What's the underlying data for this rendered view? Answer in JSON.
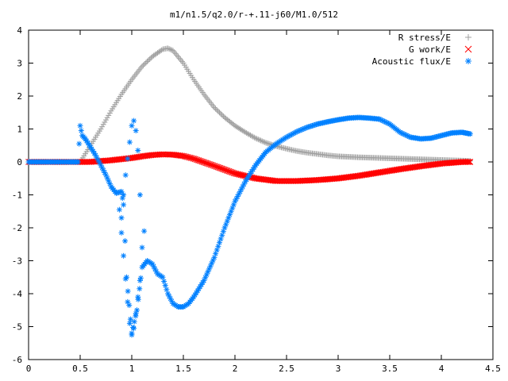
{
  "chart_data": {
    "type": "scatter",
    "title": "m1/n1.5/q2.0/r-+.11-j60/M1.0/512",
    "xlabel": "",
    "ylabel": "",
    "xlim": [
      0,
      4.5
    ],
    "ylim": [
      -6,
      4
    ],
    "xticks": [
      "0",
      "0.5",
      "1",
      "1.5",
      "2",
      "2.5",
      "3",
      "3.5",
      "4",
      "4.5"
    ],
    "yticks": [
      "4",
      "3",
      "2",
      "1",
      "0",
      "-1",
      "-2",
      "-3",
      "-4",
      "-5",
      "-6"
    ],
    "grid": false,
    "legend_position": "top-right",
    "series": [
      {
        "name": "R stress/E",
        "marker": "plus",
        "color": "#a0a0a0",
        "x": [
          0.0,
          0.1,
          0.2,
          0.3,
          0.4,
          0.5,
          0.6,
          0.7,
          0.8,
          0.9,
          1.0,
          1.1,
          1.2,
          1.3,
          1.35,
          1.4,
          1.5,
          1.6,
          1.7,
          1.8,
          1.9,
          2.0,
          2.1,
          2.2,
          2.3,
          2.4,
          2.5,
          2.6,
          2.7,
          2.8,
          2.9,
          3.0,
          3.2,
          3.4,
          3.6,
          3.8,
          4.0,
          4.2,
          4.28
        ],
        "y": [
          0.0,
          0.0,
          0.0,
          0.0,
          0.0,
          0.0,
          0.5,
          1.0,
          1.55,
          2.05,
          2.5,
          2.9,
          3.2,
          3.42,
          3.45,
          3.38,
          3.0,
          2.5,
          2.05,
          1.65,
          1.35,
          1.1,
          0.9,
          0.72,
          0.58,
          0.48,
          0.4,
          0.33,
          0.28,
          0.24,
          0.2,
          0.17,
          0.14,
          0.12,
          0.1,
          0.08,
          0.06,
          0.04,
          0.03
        ]
      },
      {
        "name": "G work/E",
        "marker": "cross",
        "color": "#ff0000",
        "x": [
          0.0,
          0.2,
          0.4,
          0.6,
          0.8,
          1.0,
          1.1,
          1.2,
          1.3,
          1.4,
          1.5,
          1.6,
          1.8,
          2.0,
          2.2,
          2.4,
          2.6,
          2.8,
          3.0,
          3.2,
          3.4,
          3.6,
          3.8,
          4.0,
          4.2,
          4.28
        ],
        "y": [
          0.0,
          0.0,
          0.0,
          0.0,
          0.05,
          0.12,
          0.17,
          0.21,
          0.23,
          0.22,
          0.18,
          0.1,
          -0.12,
          -0.35,
          -0.5,
          -0.58,
          -0.58,
          -0.55,
          -0.5,
          -0.42,
          -0.32,
          -0.22,
          -0.13,
          -0.05,
          0.0,
          0.0
        ]
      },
      {
        "name": "Acoustic flux/E",
        "marker": "star",
        "color": "#0080ff",
        "x": [
          0.0,
          0.1,
          0.2,
          0.3,
          0.4,
          0.48,
          0.5,
          0.52,
          0.55,
          0.6,
          0.65,
          0.7,
          0.75,
          0.8,
          0.85,
          0.9,
          0.92,
          0.95,
          1.0,
          1.05,
          1.1,
          1.15,
          1.2,
          1.25,
          1.3,
          1.35,
          1.4,
          1.45,
          1.5,
          1.55,
          1.6,
          1.7,
          1.8,
          1.9,
          2.0,
          2.1,
          2.2,
          2.3,
          2.4,
          2.5,
          2.6,
          2.7,
          2.8,
          2.9,
          3.0,
          3.1,
          3.2,
          3.3,
          3.4,
          3.5,
          3.6,
          3.7,
          3.8,
          3.9,
          4.0,
          4.1,
          4.2,
          4.28
        ],
        "y": [
          0.0,
          0.0,
          0.0,
          0.0,
          0.0,
          0.0,
          1.1,
          0.8,
          0.7,
          0.45,
          0.2,
          -0.1,
          -0.4,
          -0.75,
          -0.95,
          -0.9,
          -1.3,
          -3.5,
          -5.2,
          -4.5,
          -3.2,
          -3.0,
          -3.1,
          -3.4,
          -3.5,
          -4.0,
          -4.3,
          -4.4,
          -4.4,
          -4.3,
          -4.1,
          -3.6,
          -2.9,
          -2.0,
          -1.2,
          -0.6,
          -0.1,
          0.3,
          0.55,
          0.75,
          0.92,
          1.05,
          1.15,
          1.22,
          1.28,
          1.33,
          1.35,
          1.33,
          1.3,
          1.15,
          0.9,
          0.75,
          0.7,
          0.72,
          0.8,
          0.88,
          0.9,
          0.85
        ]
      }
    ],
    "scatter_extra": [
      {
        "series": "Acoustic flux/E",
        "x": [
          0.88,
          0.9,
          0.92,
          0.94,
          0.96,
          0.98,
          1.0,
          1.02,
          1.04,
          1.06,
          1.08,
          1.1,
          1.12
        ],
        "y": [
          -1.45,
          -2.15,
          -2.85,
          -3.55,
          -4.25,
          -4.9,
          -5.25,
          -5.05,
          -4.6,
          -4.1,
          -3.6,
          -2.6,
          -2.1
        ]
      },
      {
        "series": "Acoustic flux/E",
        "x": [
          0.9,
          0.92,
          0.94,
          0.96,
          0.98,
          1.0,
          1.02,
          1.04,
          1.06,
          1.08
        ],
        "y": [
          -1.7,
          -1.0,
          -0.4,
          0.1,
          0.6,
          1.1,
          1.25,
          0.95,
          0.35,
          -1.0
        ]
      }
    ]
  }
}
